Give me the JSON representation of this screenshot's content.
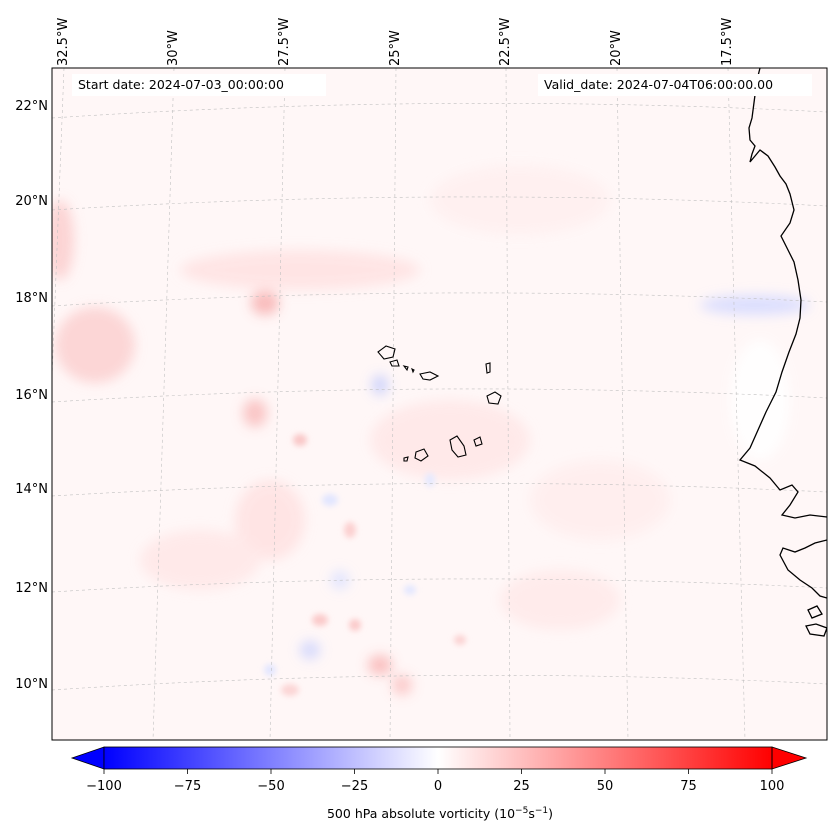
{
  "map": {
    "start_date": "Start date: 2024-07-03_00:00:00",
    "valid_date": "Valid_date: 2024-07-04T06:00:00.00",
    "lon_labels": [
      "32.5°W",
      "30°W",
      "27.5°W",
      "25°W",
      "22.5°W",
      "20°W",
      "17.5°W"
    ],
    "lat_labels": [
      "22°N",
      "20°N",
      "18°N",
      "16°N",
      "14°N",
      "12°N",
      "10°N"
    ],
    "features": [
      "Cape Verde islands",
      "West African coastline"
    ]
  },
  "colorbar": {
    "min": -100,
    "max": 100,
    "ticks": [
      "−100",
      "−75",
      "−50",
      "−25",
      "0",
      "25",
      "50",
      "75",
      "100"
    ],
    "label_prefix": "500 hPa absolute vorticity (10",
    "label_exp1": "−5",
    "label_mid": "s",
    "label_exp2": "−1",
    "label_suffix": ")",
    "colors": {
      "negative": "#0000ff",
      "zero": "#ffffff",
      "positive": "#ff0000"
    }
  }
}
